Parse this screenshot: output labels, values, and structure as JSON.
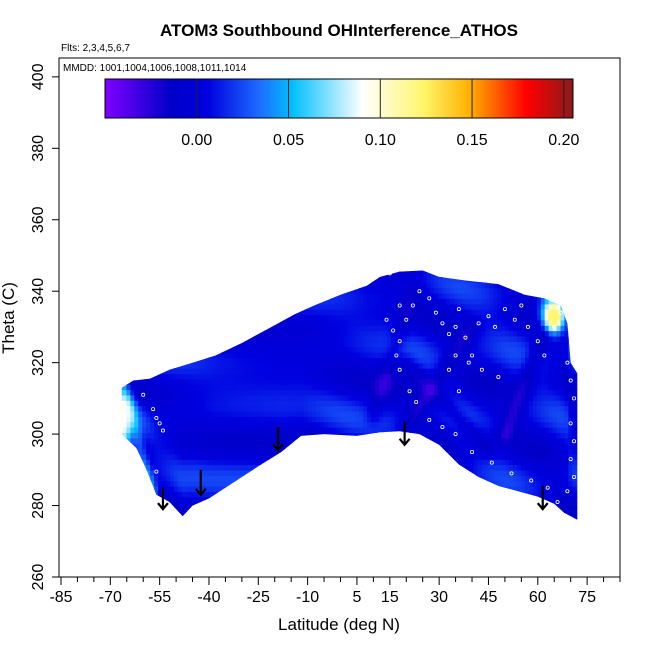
{
  "chart_data": {
    "type": "heatmap",
    "title": "ATOM3 Southbound OHInterference_ATHOS",
    "subtitle_flights": "Flts: 2,3,4,5,6,7",
    "subtitle_dates": "MMDD: 1001,1004,1006,1008,1011,1014",
    "xlabel": "Latitude (deg N)",
    "ylabel": "Theta (C)",
    "xlim": [
      -85,
      85
    ],
    "ylim": [
      260,
      405
    ],
    "x_ticks": [
      -85,
      -70,
      -55,
      -40,
      -25,
      -10,
      5,
      15,
      30,
      45,
      60,
      75
    ],
    "x_tick_labels": [
      "-85",
      "-70",
      "-55",
      "-40",
      "-25",
      "-10",
      "5",
      "15",
      "30",
      "45",
      "60",
      "75"
    ],
    "x_minor_ticks": [
      -80,
      -75,
      -65,
      -60,
      -50,
      -45,
      -35,
      -30,
      -20,
      -15,
      -5,
      0,
      10,
      20,
      25,
      35,
      40,
      50,
      55,
      65,
      70,
      80,
      85
    ],
    "y_ticks": [
      260,
      280,
      300,
      320,
      340,
      360,
      380,
      400
    ],
    "y_tick_labels": [
      "260",
      "280",
      "300",
      "320",
      "340",
      "360",
      "380",
      "400"
    ],
    "colorbar": {
      "range": [
        -0.05,
        0.205
      ],
      "ticks": [
        0.0,
        0.05,
        0.1,
        0.15,
        0.2
      ],
      "tick_labels": [
        "0.00",
        "0.05",
        "0.10",
        "0.15",
        "0.20"
      ],
      "colors": [
        "#7f00ff",
        "#0000c8",
        "#0000e0",
        "#1e6bff",
        "#00bfff",
        "#ffffff",
        "#fff66b",
        "#ffb000",
        "#ff0000",
        "#8b1a1a"
      ]
    },
    "field": {
      "background_value": 0.005,
      "upper_boundary": [
        [
          -66.5,
          313
        ],
        [
          -63,
          315
        ],
        [
          -58,
          315.5
        ],
        [
          -52,
          318
        ],
        [
          -45,
          320
        ],
        [
          -38,
          322
        ],
        [
          -30,
          325.5
        ],
        [
          -22,
          329.5
        ],
        [
          -14,
          333.5
        ],
        [
          -8,
          336
        ],
        [
          0,
          339
        ],
        [
          8,
          341.5
        ],
        [
          12,
          344
        ],
        [
          18,
          345.5
        ],
        [
          25,
          345.8
        ],
        [
          30,
          344
        ],
        [
          38,
          343
        ],
        [
          48,
          342
        ],
        [
          56,
          339
        ],
        [
          62,
          338
        ],
        [
          67,
          336
        ],
        [
          69,
          331
        ],
        [
          70,
          320
        ],
        [
          72,
          317
        ]
      ],
      "lower_boundary": [
        [
          -66.5,
          300
        ],
        [
          -62,
          296
        ],
        [
          -59,
          290
        ],
        [
          -56,
          283
        ],
        [
          -52,
          281
        ],
        [
          -48,
          277
        ],
        [
          -45,
          280
        ],
        [
          -40,
          282
        ],
        [
          -35,
          285
        ],
        [
          -30,
          288
        ],
        [
          -25,
          291
        ],
        [
          -18,
          295
        ],
        [
          -12,
          299.5
        ],
        [
          -5,
          300
        ],
        [
          5,
          299.5
        ],
        [
          12,
          300.5
        ],
        [
          18,
          300.8
        ],
        [
          24,
          300
        ],
        [
          30,
          297
        ],
        [
          36,
          291.5
        ],
        [
          42,
          288
        ],
        [
          48,
          285.5
        ],
        [
          54,
          284
        ],
        [
          60,
          282.5
        ],
        [
          65,
          280.5
        ],
        [
          68,
          278
        ],
        [
          72,
          276
        ]
      ],
      "hotspots": [
        {
          "lat": -67,
          "theta": 305,
          "value": 0.13,
          "rx": 2.5,
          "ry": 6
        },
        {
          "lat": -66,
          "theta": 304,
          "value": 0.09,
          "rx": 3,
          "ry": 7
        },
        {
          "lat": 65,
          "theta": 333,
          "value": 0.2,
          "rx": 2,
          "ry": 3
        },
        {
          "lat": 64.5,
          "theta": 333.5,
          "value": 0.12,
          "rx": 3.5,
          "ry": 5
        }
      ],
      "light_plume": {
        "lat_start": -66,
        "theta_start": 313,
        "lat_end": -57,
        "theta_end": 284,
        "value": 0.045
      },
      "dark_bands": [
        {
          "lat_from": 20,
          "theta_from": 302,
          "lat_to": 40,
          "theta_to": 330,
          "value": -0.02
        },
        {
          "lat_from": 20,
          "theta_from": 320,
          "lat_to": 45,
          "theta_to": 296,
          "value": -0.02
        },
        {
          "lat_from": 50,
          "theta_from": 300,
          "lat_to": 65,
          "theta_to": 335,
          "value": -0.025
        },
        {
          "lat_from": 10,
          "theta_from": 305,
          "lat_to": 22,
          "theta_to": 340,
          "value": -0.015
        }
      ]
    },
    "observation_points": [
      [
        -60,
        311
      ],
      [
        -57,
        307
      ],
      [
        -56,
        304.5
      ],
      [
        -55,
        303
      ],
      [
        -54,
        301
      ],
      [
        -56,
        289.5
      ],
      [
        15,
        345
      ],
      [
        18,
        336
      ],
      [
        14,
        332
      ],
      [
        16,
        329
      ],
      [
        20,
        332
      ],
      [
        22,
        336
      ],
      [
        24,
        340
      ],
      [
        27,
        338
      ],
      [
        29,
        334
      ],
      [
        31,
        331
      ],
      [
        33,
        328
      ],
      [
        35,
        330
      ],
      [
        36,
        335
      ],
      [
        38,
        327
      ],
      [
        40,
        322
      ],
      [
        42,
        331
      ],
      [
        45,
        333
      ],
      [
        47,
        330
      ],
      [
        50,
        335
      ],
      [
        53,
        332
      ],
      [
        55,
        336
      ],
      [
        57,
        330
      ],
      [
        60,
        326
      ],
      [
        62,
        322
      ],
      [
        65,
        330
      ],
      [
        67,
        334
      ],
      [
        69,
        320
      ],
      [
        70,
        315
      ],
      [
        71,
        310
      ],
      [
        70,
        303
      ],
      [
        71,
        298
      ],
      [
        70,
        293
      ],
      [
        71,
        288
      ],
      [
        69,
        284
      ],
      [
        66,
        281
      ],
      [
        63,
        285
      ],
      [
        58,
        287
      ],
      [
        52,
        289
      ],
      [
        46,
        292
      ],
      [
        40,
        295
      ],
      [
        35,
        300
      ],
      [
        31,
        302
      ],
      [
        27,
        304
      ],
      [
        23,
        309
      ],
      [
        21,
        312
      ],
      [
        18,
        318
      ],
      [
        17,
        322
      ],
      [
        18,
        326
      ],
      [
        35,
        322
      ],
      [
        39,
        320
      ],
      [
        43,
        318
      ],
      [
        48,
        316
      ],
      [
        36,
        312
      ],
      [
        33,
        318
      ]
    ],
    "arrows": [
      {
        "lat": -54,
        "theta_top": 285,
        "theta_bottom": 279
      },
      {
        "lat": -42.5,
        "theta_top": 290,
        "theta_bottom": 283
      },
      {
        "lat": -19,
        "theta_top": 302,
        "theta_bottom": 295.5
      },
      {
        "lat": 19.5,
        "theta_top": 303.5,
        "theta_bottom": 297
      },
      {
        "lat": 61.5,
        "theta_top": 285.5,
        "theta_bottom": 279
      }
    ]
  }
}
